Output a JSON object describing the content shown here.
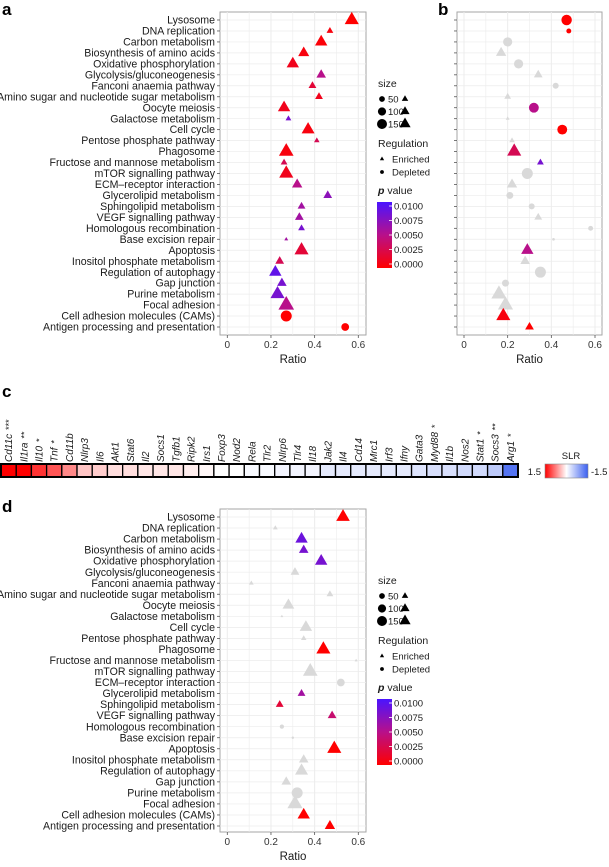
{
  "figure": {
    "panel_labels": {
      "a": "a",
      "b": "b",
      "c": "c",
      "d": "d"
    }
  },
  "colors": {
    "p_low": "#ff0000",
    "p_high": "#4a14ff",
    "not_significant": "#d9d9d9",
    "slr_high": "#ff0000",
    "slr_mid": "#ffffff",
    "slr_low": "#3a5ff0"
  },
  "legend": {
    "size_title": "size",
    "size_levels": [
      50,
      100,
      150
    ],
    "regulation_title": "Regulation",
    "regulation_items": [
      "Enriched",
      "Depleted"
    ],
    "p_title_italic": "p",
    "p_title_rest": " value",
    "p_ticks": [
      "0.0100",
      "0.0075",
      "0.0050",
      "0.0025",
      "0.0000"
    ],
    "p_range": [
      0,
      0.01
    ]
  },
  "chart_data": [
    {
      "panel": "a",
      "type": "scatter",
      "xlabel": "Ratio",
      "xlim": [
        0,
        0.6
      ],
      "x_ticks": [
        "0",
        "0.2",
        "0.4",
        "0.6"
      ],
      "grid": true,
      "legend_placement": "right",
      "categories": [
        "Lysosome",
        "DNA replication",
        "Carbon metabolism",
        "Biosynthesis of amino acids",
        "Oxidative phosphorylation",
        "Glycolysis/gluconeogenesis",
        "Fanconi anaemia pathway",
        "Amino sugar and nucleotide sugar metabolism",
        "Oocyte meiosis",
        "Galactose metabolism",
        "Cell cycle",
        "Pentose phosphate pathway",
        "Phagosome",
        "Fructose and mannose metabolism",
        "mTOR signalling pathway",
        "ECM–receptor interaction",
        "Glycerolipid metabolism",
        "Sphingolipid metabolism",
        "VEGF signalling pathway",
        "Homologous recombination",
        "Base excision repair",
        "Apoptosis",
        "Inositol phosphate metabolism",
        "Regulation of autophagy",
        "Gap junction",
        "Purine metabolism",
        "Focal adhesion",
        "Cell adhesion molecules (CAMs)",
        "Antigen processing and presentation"
      ],
      "points": [
        {
          "ratio": 0.57,
          "regulation": "Enriched",
          "size": 130,
          "p": 0.0
        },
        {
          "ratio": 0.47,
          "regulation": "Enriched",
          "size": 30,
          "p": 0.0005
        },
        {
          "ratio": 0.43,
          "regulation": "Enriched",
          "size": 100,
          "p": 0.0003
        },
        {
          "ratio": 0.35,
          "regulation": "Enriched",
          "size": 80,
          "p": 0.0005
        },
        {
          "ratio": 0.3,
          "regulation": "Enriched",
          "size": 100,
          "p": 0.001
        },
        {
          "ratio": 0.43,
          "regulation": "Enriched",
          "size": 60,
          "p": 0.005
        },
        {
          "ratio": 0.39,
          "regulation": "Enriched",
          "size": 40,
          "p": 0.002
        },
        {
          "ratio": 0.42,
          "regulation": "Enriched",
          "size": 40,
          "p": 0.001
        },
        {
          "ratio": 0.26,
          "regulation": "Enriched",
          "size": 100,
          "p": 0.001
        },
        {
          "ratio": 0.28,
          "regulation": "Enriched",
          "size": 22,
          "p": 0.008
        },
        {
          "ratio": 0.37,
          "regulation": "Enriched",
          "size": 110,
          "p": 0.0005
        },
        {
          "ratio": 0.41,
          "regulation": "Enriched",
          "size": 20,
          "p": 0.003
        },
        {
          "ratio": 0.27,
          "regulation": "Enriched",
          "size": 140,
          "p": 0.0005
        },
        {
          "ratio": 0.26,
          "regulation": "Enriched",
          "size": 30,
          "p": 0.003
        },
        {
          "ratio": 0.27,
          "regulation": "Enriched",
          "size": 130,
          "p": 0.001
        },
        {
          "ratio": 0.32,
          "regulation": "Enriched",
          "size": 70,
          "p": 0.005
        },
        {
          "ratio": 0.46,
          "regulation": "Enriched",
          "size": 50,
          "p": 0.007
        },
        {
          "ratio": 0.34,
          "regulation": "Enriched",
          "size": 40,
          "p": 0.006
        },
        {
          "ratio": 0.33,
          "regulation": "Enriched",
          "size": 50,
          "p": 0.006
        },
        {
          "ratio": 0.34,
          "regulation": "Enriched",
          "size": 30,
          "p": 0.008
        },
        {
          "ratio": 0.27,
          "regulation": "Enriched",
          "size": 10,
          "p": 0.006
        },
        {
          "ratio": 0.34,
          "regulation": "Enriched",
          "size": 130,
          "p": 0.002
        },
        {
          "ratio": 0.24,
          "regulation": "Enriched",
          "size": 50,
          "p": 0.003
        },
        {
          "ratio": 0.22,
          "regulation": "Enriched",
          "size": 100,
          "p": 0.009
        },
        {
          "ratio": 0.25,
          "regulation": "Enriched",
          "size": 60,
          "p": 0.008
        },
        {
          "ratio": 0.23,
          "regulation": "Enriched",
          "size": 130,
          "p": 0.008
        },
        {
          "ratio": 0.27,
          "regulation": "Enriched",
          "size": 160,
          "p": 0.005
        },
        {
          "ratio": 0.27,
          "regulation": "Depleted",
          "size": 100,
          "p": 0.0
        },
        {
          "ratio": 0.54,
          "regulation": "Depleted",
          "size": 50,
          "p": 0.0
        }
      ]
    },
    {
      "panel": "b",
      "type": "scatter",
      "xlabel": "Ratio",
      "xlim": [
        0,
        0.6
      ],
      "x_ticks": [
        "0",
        "0.2",
        "0.4",
        "0.6"
      ],
      "grid": true,
      "points": [
        {
          "ratio": 0.47,
          "regulation": "Depleted",
          "size": 90,
          "p": 0.0
        },
        {
          "ratio": 0.48,
          "regulation": "Depleted",
          "size": 20,
          "p": 0.0
        },
        {
          "ratio": 0.2,
          "regulation": "Depleted",
          "size": 70,
          "p": null
        },
        {
          "ratio": 0.17,
          "regulation": "Enriched",
          "size": 70,
          "p": null
        },
        {
          "ratio": 0.25,
          "regulation": "Depleted",
          "size": 70,
          "p": null
        },
        {
          "ratio": 0.34,
          "regulation": "Enriched",
          "size": 50,
          "p": null
        },
        {
          "ratio": 0.42,
          "regulation": "Depleted",
          "size": 30,
          "p": null
        },
        {
          "ratio": 0.2,
          "regulation": "Enriched",
          "size": 30,
          "p": null
        },
        {
          "ratio": 0.32,
          "regulation": "Depleted",
          "size": 80,
          "p": 0.005
        },
        {
          "ratio": 0.2,
          "regulation": "Enriched",
          "size": 10,
          "p": null
        },
        {
          "ratio": 0.45,
          "regulation": "Depleted",
          "size": 80,
          "p": 0.0
        },
        {
          "ratio": 0.22,
          "regulation": "Enriched",
          "size": 20,
          "p": null
        },
        {
          "ratio": 0.23,
          "regulation": "Enriched",
          "size": 130,
          "p": 0.003
        },
        {
          "ratio": 0.35,
          "regulation": "Enriched",
          "size": 30,
          "p": 0.008
        },
        {
          "ratio": 0.29,
          "regulation": "Depleted",
          "size": 100,
          "p": null
        },
        {
          "ratio": 0.22,
          "regulation": "Enriched",
          "size": 70,
          "p": null
        },
        {
          "ratio": 0.21,
          "regulation": "Depleted",
          "size": 40,
          "p": null
        },
        {
          "ratio": 0.31,
          "regulation": "Depleted",
          "size": 30,
          "p": null
        },
        {
          "ratio": 0.34,
          "regulation": "Enriched",
          "size": 40,
          "p": null
        },
        {
          "ratio": 0.58,
          "regulation": "Depleted",
          "size": 20,
          "p": null
        },
        {
          "ratio": 0.41,
          "regulation": "Depleted",
          "size": 6,
          "p": null
        },
        {
          "ratio": 0.29,
          "regulation": "Enriched",
          "size": 100,
          "p": 0.005
        },
        {
          "ratio": 0.28,
          "regulation": "Enriched",
          "size": 60,
          "p": null
        },
        {
          "ratio": 0.35,
          "regulation": "Depleted",
          "size": 100,
          "p": null
        },
        {
          "ratio": 0.19,
          "regulation": "Depleted",
          "size": 40,
          "p": null
        },
        {
          "ratio": 0.16,
          "regulation": "Enriched",
          "size": 150,
          "p": null
        },
        {
          "ratio": 0.19,
          "regulation": "Enriched",
          "size": 150,
          "p": null
        },
        {
          "ratio": 0.18,
          "regulation": "Enriched",
          "size": 130,
          "p": 0.0005
        },
        {
          "ratio": 0.3,
          "regulation": "Enriched",
          "size": 50,
          "p": 0.0
        }
      ]
    },
    {
      "panel": "c",
      "type": "heatmap",
      "legend_title": "SLR",
      "legend_ticks": [
        "1.5",
        "-1.5"
      ],
      "range": [
        -1.5,
        1.5
      ],
      "genes": [
        {
          "name": "Cd11c",
          "stars": "***",
          "slr": 1.5
        },
        {
          "name": "Il1ra",
          "stars": "**",
          "slr": 1.5
        },
        {
          "name": "Il10",
          "stars": "*",
          "slr": 1.2
        },
        {
          "name": "Tnf",
          "stars": "*",
          "slr": 1.0
        },
        {
          "name": "Cd11b",
          "stars": "",
          "slr": 0.7
        },
        {
          "name": "Nlrp3",
          "stars": "",
          "slr": 0.35
        },
        {
          "name": "Il6",
          "stars": "",
          "slr": 0.3
        },
        {
          "name": "Akt1",
          "stars": "",
          "slr": 0.2
        },
        {
          "name": "Stat6",
          "stars": "",
          "slr": 0.2
        },
        {
          "name": "Il2",
          "stars": "",
          "slr": 0.15
        },
        {
          "name": "Socs1",
          "stars": "",
          "slr": 0.15
        },
        {
          "name": "Tgfb1",
          "stars": "",
          "slr": 0.15
        },
        {
          "name": "Ripk2",
          "stars": "",
          "slr": 0.1
        },
        {
          "name": "Irs1",
          "stars": "",
          "slr": 0.05
        },
        {
          "name": "Foxp3",
          "stars": "",
          "slr": 0.0
        },
        {
          "name": "Nod2",
          "stars": "",
          "slr": 0.0
        },
        {
          "name": "Rela",
          "stars": "",
          "slr": -0.05
        },
        {
          "name": "Tlr2",
          "stars": "",
          "slr": -0.05
        },
        {
          "name": "Nlrp6",
          "stars": "",
          "slr": -0.1
        },
        {
          "name": "Tlr4",
          "stars": "",
          "slr": -0.1
        },
        {
          "name": "Il18",
          "stars": "",
          "slr": -0.1
        },
        {
          "name": "Jak2",
          "stars": "",
          "slr": -0.2
        },
        {
          "name": "Il4",
          "stars": "",
          "slr": -0.2
        },
        {
          "name": "Cd14",
          "stars": "",
          "slr": -0.2
        },
        {
          "name": "Mrc1",
          "stars": "",
          "slr": -0.2
        },
        {
          "name": "Irf3",
          "stars": "",
          "slr": -0.2
        },
        {
          "name": "Ifny",
          "stars": "",
          "slr": -0.2
        },
        {
          "name": "Gata3",
          "stars": "",
          "slr": -0.25
        },
        {
          "name": "Myd88",
          "stars": "*",
          "slr": -0.3
        },
        {
          "name": "Il1b",
          "stars": "",
          "slr": -0.3
        },
        {
          "name": "Nos2",
          "stars": "",
          "slr": -0.35
        },
        {
          "name": "Stat1",
          "stars": "*",
          "slr": -0.35
        },
        {
          "name": "Socs3",
          "stars": "**",
          "slr": -0.5
        },
        {
          "name": "Arg1",
          "stars": "*",
          "slr": -1.3
        }
      ]
    },
    {
      "panel": "d",
      "type": "scatter",
      "xlabel": "Ratio",
      "xlim": [
        0,
        0.6
      ],
      "x_ticks": [
        "0",
        "0.2",
        "0.4",
        "0.6"
      ],
      "grid": true,
      "legend_placement": "right",
      "points": [
        {
          "ratio": 0.53,
          "regulation": "Enriched",
          "size": 120,
          "p": 0.0
        },
        {
          "ratio": 0.22,
          "regulation": "Enriched",
          "size": 15,
          "p": null
        },
        {
          "ratio": 0.34,
          "regulation": "Enriched",
          "size": 100,
          "p": 0.0085
        },
        {
          "ratio": 0.35,
          "regulation": "Enriched",
          "size": 60,
          "p": 0.008
        },
        {
          "ratio": 0.43,
          "regulation": "Enriched",
          "size": 100,
          "p": 0.008
        },
        {
          "ratio": 0.31,
          "regulation": "Enriched",
          "size": 50,
          "p": null
        },
        {
          "ratio": 0.11,
          "regulation": "Enriched",
          "size": 15,
          "p": null
        },
        {
          "ratio": 0.47,
          "regulation": "Enriched",
          "size": 30,
          "p": null
        },
        {
          "ratio": 0.28,
          "regulation": "Enriched",
          "size": 90,
          "p": null
        },
        {
          "ratio": 0.25,
          "regulation": "Enriched",
          "size": 5,
          "p": null
        },
        {
          "ratio": 0.36,
          "regulation": "Enriched",
          "size": 100,
          "p": null
        },
        {
          "ratio": 0.35,
          "regulation": "Enriched",
          "size": 20,
          "p": null
        },
        {
          "ratio": 0.44,
          "regulation": "Enriched",
          "size": 130,
          "p": 0.0
        },
        {
          "ratio": 0.59,
          "regulation": "Enriched",
          "size": 6,
          "p": null
        },
        {
          "ratio": 0.38,
          "regulation": "Enriched",
          "size": 140,
          "p": null
        },
        {
          "ratio": 0.52,
          "regulation": "Depleted",
          "size": 50,
          "p": null
        },
        {
          "ratio": 0.34,
          "regulation": "Enriched",
          "size": 40,
          "p": 0.006
        },
        {
          "ratio": 0.24,
          "regulation": "Enriched",
          "size": 40,
          "p": 0.002
        },
        {
          "ratio": 0.48,
          "regulation": "Enriched",
          "size": 50,
          "p": 0.004
        },
        {
          "ratio": 0.25,
          "regulation": "Depleted",
          "size": 15,
          "p": null
        },
        {
          "ratio": 0.3,
          "regulation": "Depleted",
          "size": 5,
          "p": null
        },
        {
          "ratio": 0.49,
          "regulation": "Enriched",
          "size": 130,
          "p": 0.0
        },
        {
          "ratio": 0.35,
          "regulation": "Enriched",
          "size": 60,
          "p": null
        },
        {
          "ratio": 0.34,
          "regulation": "Enriched",
          "size": 110,
          "p": null
        },
        {
          "ratio": 0.27,
          "regulation": "Enriched",
          "size": 60,
          "p": null
        },
        {
          "ratio": 0.32,
          "regulation": "Depleted",
          "size": 100,
          "p": null
        },
        {
          "ratio": 0.31,
          "regulation": "Enriched",
          "size": 150,
          "p": null
        },
        {
          "ratio": 0.35,
          "regulation": "Enriched",
          "size": 100,
          "p": 0.0
        },
        {
          "ratio": 0.47,
          "regulation": "Enriched",
          "size": 70,
          "p": 0.0
        }
      ]
    }
  ]
}
